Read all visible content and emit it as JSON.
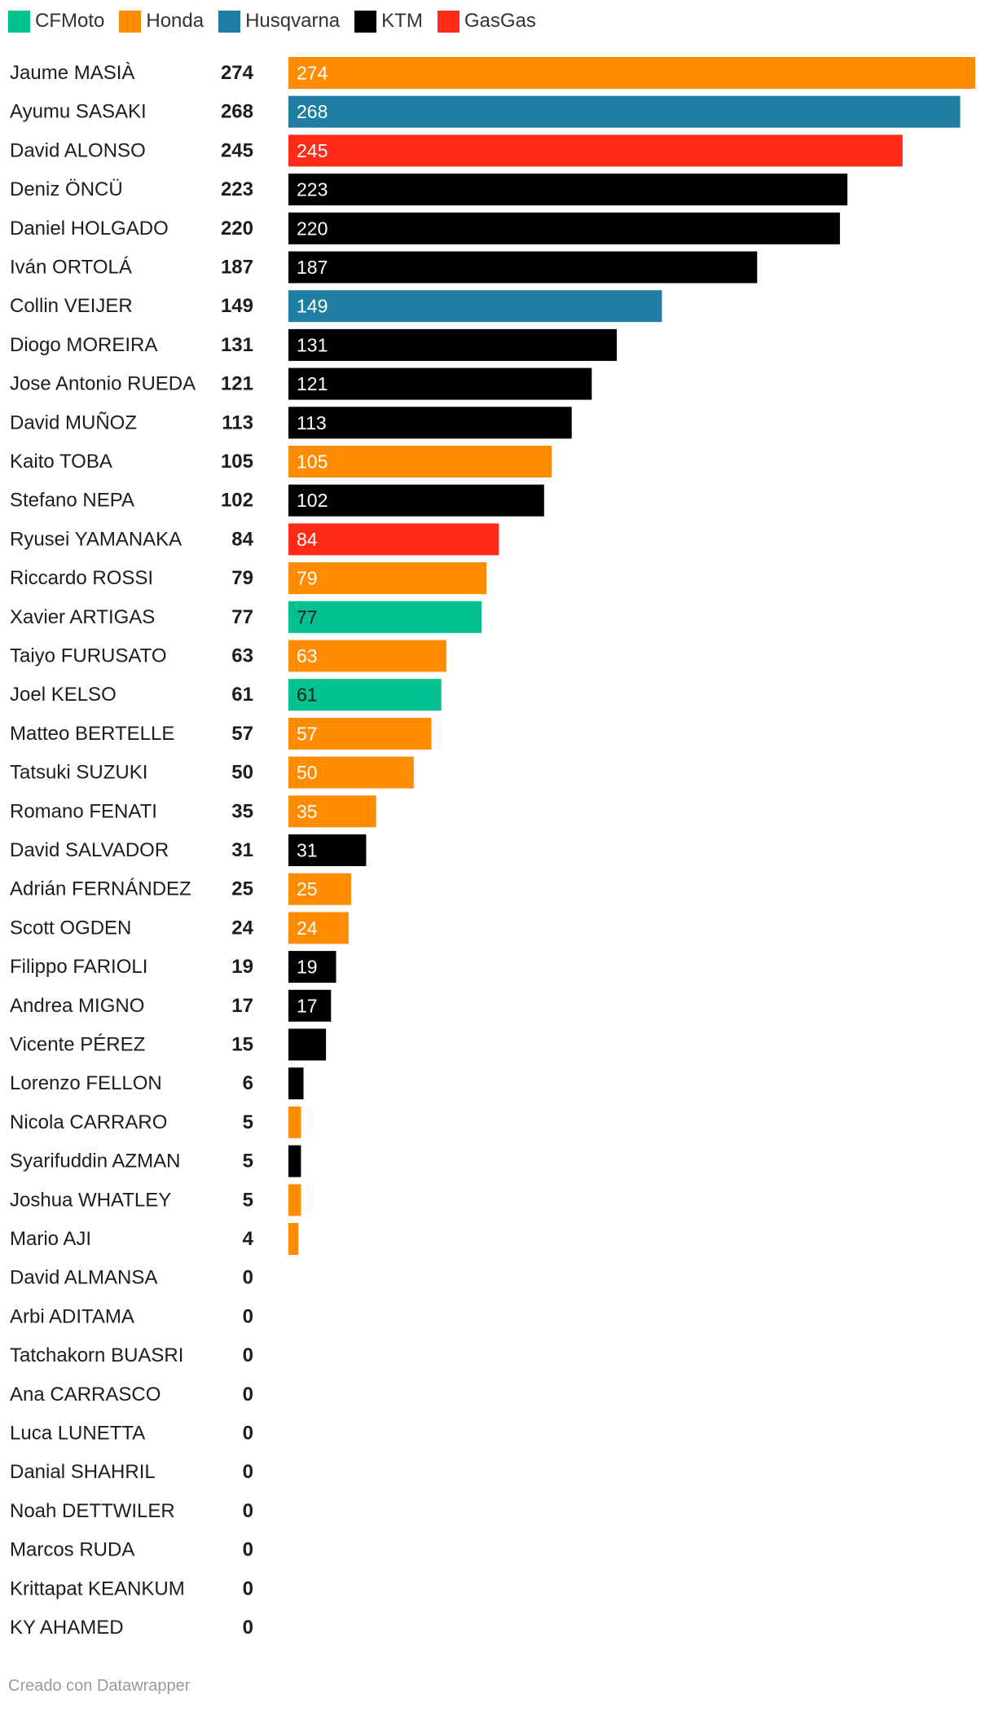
{
  "legend": [
    {
      "name": "CFMoto",
      "color": "#00c18f"
    },
    {
      "name": "Honda",
      "color": "#ff8c00"
    },
    {
      "name": "Husqvarna",
      "color": "#1f7ea1"
    },
    {
      "name": "KTM",
      "color": "#000000"
    },
    {
      "name": "GasGas",
      "color": "#ff2a17"
    }
  ],
  "chart_data": {
    "type": "bar",
    "orientation": "horizontal",
    "title": "",
    "xlabel": "",
    "ylabel": "",
    "xlim": [
      0,
      274
    ],
    "grid": false,
    "legend_position": "top-left",
    "categories": [
      "Jaume MASIÀ",
      "Ayumu SASAKI",
      "David ALONSO",
      "Deniz ÖNCÜ",
      "Daniel HOLGADO",
      "Iván ORTOLÁ",
      "Collin VEIJER",
      "Diogo MOREIRA",
      "Jose Antonio RUEDA",
      "David MUÑOZ",
      "Kaito TOBA",
      "Stefano NEPA",
      "Ryusei YAMANAKA",
      "Riccardo ROSSI",
      "Xavier ARTIGAS",
      "Taiyo FURUSATO",
      "Joel KELSO",
      "Matteo BERTELLE",
      "Tatsuki SUZUKI",
      "Romano FENATI",
      "David SALVADOR",
      "Adrián FERNÁNDEZ",
      "Scott OGDEN",
      "Filippo FARIOLI",
      "Andrea MIGNO",
      "Vicente PÉREZ",
      "Lorenzo FELLON",
      "Nicola CARRARO",
      "Syarifuddin AZMAN",
      "Joshua WHATLEY",
      "Mario AJI",
      "David ALMANSA",
      "Arbi ADITAMA",
      "Tatchakorn BUASRI",
      "Ana CARRASCO",
      "Luca LUNETTA",
      "Danial SHAHRIL",
      "Noah DETTWILER",
      "Marcos RUDA",
      "Krittapat KEANKUM",
      "KY AHAMED"
    ],
    "values": [
      274,
      268,
      245,
      223,
      220,
      187,
      149,
      131,
      121,
      113,
      105,
      102,
      84,
      79,
      77,
      63,
      61,
      57,
      50,
      35,
      31,
      25,
      24,
      19,
      17,
      15,
      6,
      5,
      5,
      5,
      4,
      0,
      0,
      0,
      0,
      0,
      0,
      0,
      0,
      0,
      0
    ],
    "brands": [
      "Honda",
      "Husqvarna",
      "GasGas",
      "KTM",
      "KTM",
      "KTM",
      "Husqvarna",
      "KTM",
      "KTM",
      "KTM",
      "Honda",
      "KTM",
      "GasGas",
      "Honda",
      "CFMoto",
      "Honda",
      "CFMoto",
      "Honda",
      "Honda",
      "Honda",
      "KTM",
      "Honda",
      "Honda",
      "KTM",
      "KTM",
      "KTM",
      "KTM",
      "Honda",
      "KTM",
      "Honda",
      "Honda",
      "",
      "",
      "",
      "",
      "",
      "",
      "",
      "",
      "",
      ""
    ],
    "bar_labels_shown_min": 17,
    "label_text_colors": {
      "CFMoto": "#1d1d1d",
      "Honda": "#ffffff",
      "Husqvarna": "#ffffff",
      "KTM": "#ffffff",
      "GasGas": "#ffffff"
    }
  },
  "footer": "Creado con Datawrapper"
}
